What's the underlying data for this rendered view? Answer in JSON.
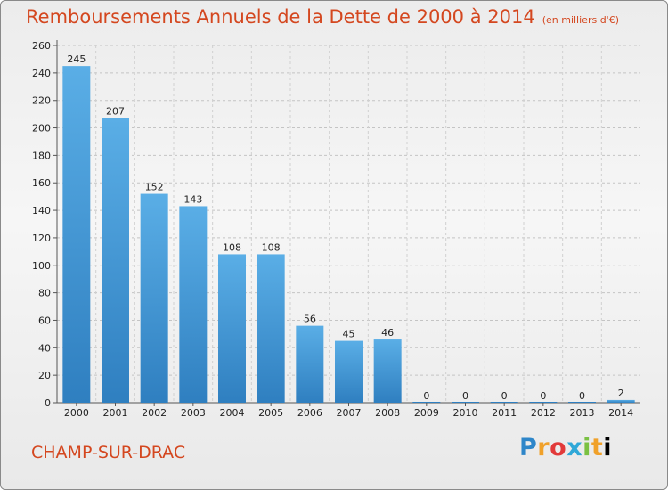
{
  "header": {
    "title": "Remboursements Annuels de la Dette de 2000 à 2014",
    "subtitle": "(en milliers d'€)"
  },
  "footer": {
    "commune": "CHAMP-SUR-DRAC",
    "logo_text": "Proxiti"
  },
  "colors": {
    "title": "#d4471f",
    "bar_top": "#5aaee6",
    "bar_bottom": "#2f7fc0"
  },
  "chart_data": {
    "type": "bar",
    "categories": [
      "2000",
      "2001",
      "2002",
      "2003",
      "2004",
      "2005",
      "2006",
      "2007",
      "2008",
      "2009",
      "2010",
      "2011",
      "2012",
      "2013",
      "2014"
    ],
    "values": [
      245,
      207,
      152,
      143,
      108,
      108,
      56,
      45,
      46,
      0,
      0,
      0,
      0,
      0,
      2
    ],
    "title": "Remboursements Annuels de la Dette de 2000 à 2014",
    "subtitle": "(en milliers d'€)",
    "xlabel": "",
    "ylabel": "",
    "ylim": [
      0,
      260
    ],
    "yticks": [
      0,
      20,
      40,
      60,
      80,
      100,
      120,
      140,
      160,
      180,
      200,
      220,
      240,
      260
    ],
    "grid": true
  }
}
